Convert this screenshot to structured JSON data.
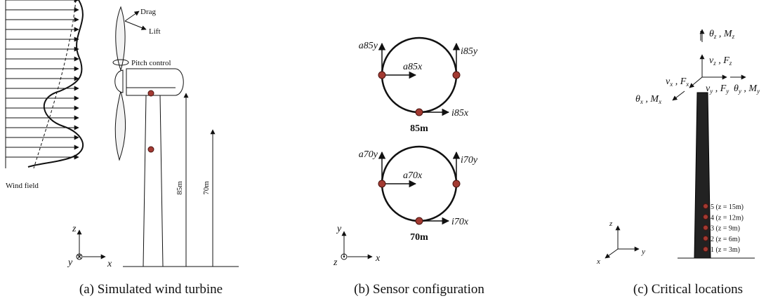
{
  "panel_a": {
    "caption": "(a) Simulated wind turbine",
    "drag": "Drag",
    "lift": "Lift",
    "pitch": "Pitch control",
    "wind": "Wind field",
    "h85": "85m",
    "h70": "70m",
    "axes": {
      "z": "z",
      "y": "y",
      "x": "x"
    }
  },
  "panel_b": {
    "caption": "(b) Sensor configuration",
    "rings": [
      {
        "ay": "a85y",
        "iy": "i85y",
        "ax": "a85x",
        "ix": "i85x",
        "height": "85m"
      },
      {
        "ay": "a70y",
        "iy": "i70y",
        "ax": "a70x",
        "ix": "i70x",
        "height": "70m"
      }
    ],
    "axes": {
      "y": "y",
      "z": "z",
      "x": "x"
    }
  },
  "panel_c": {
    "caption": "(c) Critical locations",
    "dof": {
      "theta_z": [
        "θ",
        "z",
        " , M",
        "z"
      ],
      "v_z": [
        "v",
        "z",
        " , F",
        "z"
      ],
      "v_x": [
        "v",
        "x",
        " , F",
        "x"
      ],
      "v_y": [
        "v",
        "y",
        " , F",
        "y"
      ],
      "theta_x": [
        "θ",
        "x",
        " , M",
        "x"
      ],
      "theta_y": [
        "θ",
        "y",
        " , M",
        "y"
      ]
    },
    "locations": [
      "5 (z = 15m)",
      "4 (z = 12m)",
      "3 (z = 9m)",
      "2 (z = 6m)",
      "1 (z = 3m)"
    ],
    "axes": {
      "z": "z",
      "x": "x",
      "y": "y"
    }
  }
}
